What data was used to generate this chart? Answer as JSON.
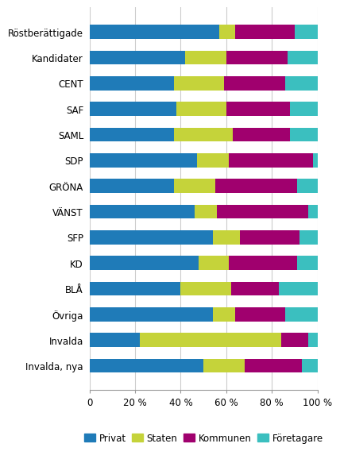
{
  "categories": [
    "Röstberättigade",
    "Kandidater",
    "CENT",
    "SAF",
    "SAML",
    "SDP",
    "GRÖNA",
    "VÄNST",
    "SFP",
    "KD",
    "BLÅ",
    "Övriga",
    "Invalda",
    "Invalda, nya"
  ],
  "series": {
    "Privat": [
      57,
      42,
      37,
      38,
      37,
      47,
      37,
      46,
      54,
      48,
      40,
      54,
      22,
      50
    ],
    "Staten": [
      7,
      18,
      22,
      22,
      26,
      14,
      18,
      10,
      12,
      13,
      22,
      10,
      62,
      18
    ],
    "Kommunen": [
      26,
      27,
      27,
      28,
      25,
      37,
      36,
      40,
      26,
      30,
      21,
      22,
      12,
      25
    ],
    "Företagare": [
      10,
      13,
      14,
      12,
      12,
      2,
      9,
      4,
      8,
      9,
      17,
      14,
      4,
      7
    ]
  },
  "colors": {
    "Privat": "#1F7BB8",
    "Staten": "#C5D33A",
    "Kommunen": "#A0006E",
    "Företagare": "#3BBFBF"
  },
  "legend_order": [
    "Privat",
    "Staten",
    "Kommunen",
    "Företagare"
  ],
  "xlim": [
    0,
    100
  ],
  "xtick_labels": [
    "0",
    "20 %",
    "40 %",
    "60 %",
    "80 %",
    "100 %"
  ],
  "xtick_positions": [
    0,
    20,
    40,
    60,
    80,
    100
  ],
  "background_color": "#ffffff",
  "grid_color": "#cccccc",
  "bar_height": 0.55,
  "tick_fontsize": 8.5,
  "legend_fontsize": 8.5
}
